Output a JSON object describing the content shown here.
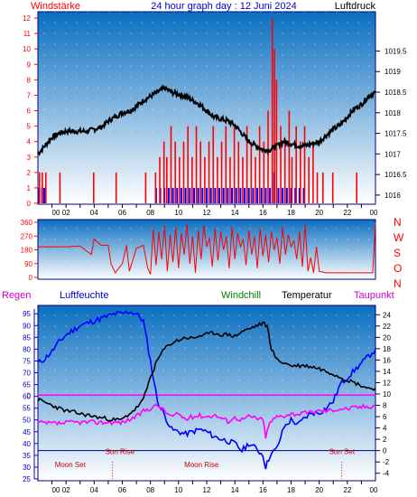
{
  "header": {
    "title": "24 hour graph day : 12 Juni 2024",
    "left_label": "Windstärke",
    "right_label": "Luftdruck"
  },
  "lower_header": {
    "regen": "Regen",
    "luftfeuchte": "Luftfeuchte",
    "windchill": "Windchill",
    "temperatur": "Temperatur",
    "taupunkt": "Taupunkt"
  },
  "colors": {
    "frame": "#000080",
    "grad_top": "#0a6fc0",
    "grad_bottom": "#ffffff",
    "pressure": "#000000",
    "gust": "#ff0000",
    "wind": "#0000ff",
    "direction": "#ff0000",
    "humidity": "#0000ff",
    "temperature": "#000000",
    "dewpoint": "#ff00ff",
    "rain": "#ff0000",
    "axis_red": "#ff0000",
    "axis_blue": "#0000cc",
    "windchill_label": "#008000",
    "regen_label": "#cc00cc"
  },
  "chart_data": [
    {
      "type": "bar",
      "name_hint": "wind-pressure",
      "x_ticks": [
        "00",
        "02",
        "04",
        "06",
        "08",
        "10",
        "12",
        "14",
        "16",
        "18",
        "20",
        "22",
        "00"
      ],
      "x_tick_hours": [
        0,
        2,
        4,
        6,
        8,
        10,
        12,
        14,
        16,
        18,
        20,
        22,
        24
      ],
      "left_axis": {
        "ticks": [
          "0",
          "1",
          "2",
          "3",
          "4",
          "5",
          "6",
          "7",
          "8",
          "9",
          "10",
          "11",
          "12"
        ],
        "range": [
          0,
          12
        ]
      },
      "right_axis": {
        "ticks": [
          "1016",
          "1016.5",
          "1017",
          "1017.5",
          "1018",
          "1018.5",
          "1019",
          "1019.5"
        ],
        "range": [
          1015.8,
          1020.3
        ]
      },
      "pressure": {
        "hours": [
          0,
          0.5,
          1,
          1.5,
          2,
          2.5,
          3,
          3.5,
          4,
          4.5,
          5,
          5.5,
          6,
          6.5,
          7,
          7.5,
          8,
          8.5,
          9,
          9.5,
          10,
          10.5,
          11,
          11.5,
          12,
          12.5,
          13,
          13.5,
          14,
          14.5,
          15,
          15.5,
          16,
          16.5,
          17,
          17.5,
          18,
          18.5,
          19,
          19.5,
          20,
          20.5,
          21,
          21.5,
          22,
          22.5,
          23,
          23.5,
          24
        ],
        "values": [
          1017.0,
          1017.2,
          1017.4,
          1017.5,
          1017.55,
          1017.55,
          1017.55,
          1017.55,
          1017.6,
          1017.65,
          1017.8,
          1017.9,
          1018.0,
          1018.05,
          1018.15,
          1018.3,
          1018.4,
          1018.5,
          1018.6,
          1018.5,
          1018.45,
          1018.4,
          1018.3,
          1018.2,
          1018.05,
          1017.9,
          1017.85,
          1017.8,
          1017.7,
          1017.5,
          1017.3,
          1017.2,
          1017.1,
          1017.1,
          1017.2,
          1017.3,
          1017.25,
          1017.2,
          1017.2,
          1017.25,
          1017.3,
          1017.45,
          1017.6,
          1017.7,
          1017.9,
          1018.1,
          1018.2,
          1018.4,
          1018.5
        ]
      },
      "gust_events": [
        {
          "h": 0.05,
          "v": 2
        },
        {
          "h": 0.25,
          "v": 2
        },
        {
          "h": 0.5,
          "v": 2
        },
        {
          "h": 1.5,
          "v": 2
        },
        {
          "h": 3.9,
          "v": 2
        },
        {
          "h": 5.5,
          "v": 2
        },
        {
          "h": 7.6,
          "v": 2
        },
        {
          "h": 8.3,
          "v": 2
        },
        {
          "h": 8.6,
          "v": 3
        },
        {
          "h": 8.9,
          "v": 4
        },
        {
          "h": 9.1,
          "v": 3
        },
        {
          "h": 9.4,
          "v": 5
        },
        {
          "h": 9.7,
          "v": 4
        },
        {
          "h": 10.0,
          "v": 3
        },
        {
          "h": 10.3,
          "v": 4
        },
        {
          "h": 10.6,
          "v": 5
        },
        {
          "h": 10.9,
          "v": 3
        },
        {
          "h": 11.2,
          "v": 5
        },
        {
          "h": 11.5,
          "v": 4
        },
        {
          "h": 11.8,
          "v": 3
        },
        {
          "h": 12.1,
          "v": 4
        },
        {
          "h": 12.4,
          "v": 5
        },
        {
          "h": 12.7,
          "v": 3
        },
        {
          "h": 13.0,
          "v": 4
        },
        {
          "h": 13.3,
          "v": 5
        },
        {
          "h": 13.6,
          "v": 3
        },
        {
          "h": 13.9,
          "v": 5
        },
        {
          "h": 14.2,
          "v": 4
        },
        {
          "h": 14.5,
          "v": 3
        },
        {
          "h": 14.8,
          "v": 5
        },
        {
          "h": 15.1,
          "v": 4
        },
        {
          "h": 15.4,
          "v": 3
        },
        {
          "h": 15.7,
          "v": 5
        },
        {
          "h": 16.0,
          "v": 4
        },
        {
          "h": 16.3,
          "v": 6
        },
        {
          "h": 16.6,
          "v": 12
        },
        {
          "h": 16.75,
          "v": 10
        },
        {
          "h": 16.9,
          "v": 8
        },
        {
          "h": 17.2,
          "v": 5
        },
        {
          "h": 17.5,
          "v": 4
        },
        {
          "h": 17.8,
          "v": 6
        },
        {
          "h": 18.0,
          "v": 3
        },
        {
          "h": 18.3,
          "v": 5
        },
        {
          "h": 18.6,
          "v": 4
        },
        {
          "h": 18.9,
          "v": 5
        },
        {
          "h": 19.2,
          "v": 3
        },
        {
          "h": 19.5,
          "v": 4
        },
        {
          "h": 19.8,
          "v": 2
        },
        {
          "h": 20.2,
          "v": 2
        },
        {
          "h": 20.9,
          "v": 2
        },
        {
          "h": 22.6,
          "v": 2
        }
      ],
      "wind_events": [
        {
          "h": 0.1,
          "v": 1
        },
        {
          "h": 0.3,
          "v": 1
        },
        {
          "h": 0.45,
          "v": 1
        },
        {
          "h": 8.4,
          "v": 1
        },
        {
          "h": 8.7,
          "v": 1
        },
        {
          "h": 9.0,
          "v": 1
        },
        {
          "h": 9.3,
          "v": 1
        },
        {
          "h": 9.6,
          "v": 1
        },
        {
          "h": 9.9,
          "v": 1
        },
        {
          "h": 10.2,
          "v": 1
        },
        {
          "h": 10.5,
          "v": 1
        },
        {
          "h": 10.8,
          "v": 1
        },
        {
          "h": 11.1,
          "v": 1
        },
        {
          "h": 11.4,
          "v": 1
        },
        {
          "h": 11.7,
          "v": 1
        },
        {
          "h": 12.0,
          "v": 1
        },
        {
          "h": 12.3,
          "v": 1
        },
        {
          "h": 12.6,
          "v": 1
        },
        {
          "h": 12.9,
          "v": 1
        },
        {
          "h": 13.2,
          "v": 1
        },
        {
          "h": 13.5,
          "v": 1
        },
        {
          "h": 13.8,
          "v": 1
        },
        {
          "h": 14.1,
          "v": 1
        },
        {
          "h": 14.4,
          "v": 1
        },
        {
          "h": 14.7,
          "v": 1
        },
        {
          "h": 15.0,
          "v": 1
        },
        {
          "h": 15.3,
          "v": 1
        },
        {
          "h": 15.6,
          "v": 1
        },
        {
          "h": 15.9,
          "v": 1
        },
        {
          "h": 16.2,
          "v": 1
        },
        {
          "h": 16.5,
          "v": 1
        },
        {
          "h": 16.8,
          "v": 2
        },
        {
          "h": 17.1,
          "v": 1
        },
        {
          "h": 17.4,
          "v": 1
        },
        {
          "h": 17.7,
          "v": 1
        },
        {
          "h": 18.0,
          "v": 1
        },
        {
          "h": 18.3,
          "v": 1
        },
        {
          "h": 18.6,
          "v": 1
        },
        {
          "h": 18.9,
          "v": 1
        }
      ]
    },
    {
      "type": "line",
      "name_hint": "wind-direction",
      "left_axis": {
        "ticks": [
          "0",
          "90",
          "180",
          "270",
          "360"
        ],
        "range": [
          0,
          360
        ]
      },
      "right_labels": [
        "N",
        "W",
        "S",
        "O",
        "N"
      ],
      "direction": {
        "hours": [
          0,
          0.5,
          1,
          2,
          3,
          3.8,
          4,
          4.5,
          5,
          5.2,
          5.5,
          6,
          6.3,
          6.5,
          7,
          7.5,
          7.8,
          8,
          8.2,
          8.4,
          8.6,
          8.8,
          9,
          9.2,
          9.4,
          9.6,
          9.8,
          10,
          10.2,
          10.4,
          10.6,
          10.8,
          11,
          11.2,
          11.4,
          11.6,
          11.8,
          12,
          12.2,
          12.4,
          12.6,
          12.8,
          13,
          13.2,
          13.4,
          13.6,
          13.8,
          14,
          14.2,
          14.4,
          14.6,
          14.8,
          15,
          15.2,
          15.4,
          15.6,
          15.8,
          16,
          16.2,
          16.4,
          16.6,
          16.8,
          17,
          17.2,
          17.4,
          17.6,
          17.8,
          18,
          18.2,
          18.4,
          18.6,
          18.8,
          19,
          19.2,
          19.4,
          19.6,
          19.8,
          20,
          20.5,
          21,
          22,
          23,
          23.8,
          24
        ],
        "values": [
          200,
          200,
          200,
          200,
          205,
          150,
          250,
          210,
          210,
          90,
          30,
          90,
          210,
          40,
          190,
          210,
          60,
          20,
          320,
          80,
          300,
          120,
          340,
          40,
          280,
          100,
          330,
          60,
          290,
          150,
          350,
          90,
          270,
          30,
          310,
          120,
          340,
          200,
          260,
          70,
          320,
          110,
          300,
          180,
          270,
          60,
          330,
          120,
          290,
          200,
          250,
          80,
          310,
          150,
          270,
          60,
          320,
          140,
          280,
          100,
          300,
          180,
          260,
          90,
          330,
          150,
          280,
          200,
          240,
          120,
          300,
          70,
          350,
          40,
          130,
          30,
          200,
          40,
          30,
          30,
          30,
          30,
          30,
          360
        ]
      }
    },
    {
      "type": "line",
      "name_hint": "temp-humidity",
      "left_axis": {
        "ticks": [
          "25",
          "30",
          "35",
          "40",
          "45",
          "50",
          "55",
          "60",
          "65",
          "70",
          "75",
          "80",
          "85",
          "90",
          "95"
        ],
        "range": [
          25,
          97
        ]
      },
      "right_axis": {
        "ticks": [
          "-4",
          "-2",
          "0",
          "2",
          "4",
          "6",
          "8",
          "10",
          "12",
          "14",
          "16",
          "18",
          "20",
          "22",
          "24"
        ],
        "range": [
          -5,
          25
        ]
      },
      "rain_zero_label": "0",
      "annotations": {
        "sun_rise": "Sun Rise",
        "sun_set": "Sun Set",
        "moon_set": "Moon Set",
        "moon_rise": "Moon Rise"
      },
      "events": {
        "sun_rise_h": 5.3,
        "sun_set_h": 21.6,
        "moon_set_h": 1.2,
        "moon_rise_h": 10.4,
        "ref_hour_1": 5.3,
        "ref_hour_2": 21.6
      },
      "sun_line_value": 0,
      "humidity": {
        "hours": [
          0,
          0.5,
          1,
          1.5,
          2,
          2.5,
          3,
          3.5,
          4,
          4.5,
          5,
          5.5,
          6,
          6.5,
          7,
          7.5,
          8,
          8.5,
          9,
          9.5,
          10,
          10.5,
          11,
          11.5,
          12,
          12.5,
          13,
          13.5,
          14,
          14.5,
          15,
          15.5,
          16,
          16.2,
          16.5,
          17,
          17.5,
          18,
          18.5,
          19,
          19.5,
          20,
          20.5,
          21,
          21.5,
          22,
          22.5,
          23,
          23.5,
          24
        ],
        "values": [
          74,
          76,
          79,
          83,
          86,
          88,
          90,
          91,
          92,
          93,
          94,
          95,
          95,
          96,
          95,
          92,
          75,
          58,
          52,
          46,
          45,
          44,
          45,
          46,
          45,
          43,
          42,
          41,
          40,
          37,
          40,
          38,
          35,
          30,
          35,
          38,
          47,
          50,
          48,
          51,
          53,
          53,
          55,
          58,
          65,
          68,
          71,
          74,
          77,
          80
        ]
      },
      "temperature": {
        "hours": [
          0,
          0.5,
          1,
          1.5,
          2,
          2.5,
          3,
          3.5,
          4,
          4.5,
          5,
          5.5,
          6,
          6.5,
          7,
          7.5,
          8,
          8.5,
          9,
          9.5,
          10,
          10.5,
          11,
          11.5,
          12,
          12.5,
          13,
          13.5,
          14,
          14.5,
          15,
          15.5,
          16,
          16.3,
          16.6,
          17,
          17.5,
          18,
          18.5,
          19,
          19.5,
          20,
          20.5,
          21,
          21.5,
          22,
          22.5,
          23,
          23.5,
          24
        ],
        "values": [
          9,
          8.5,
          8,
          7.5,
          7,
          6.8,
          6.5,
          6.3,
          6,
          5.8,
          5.6,
          5.4,
          5.5,
          6.5,
          7.5,
          9,
          13,
          16,
          18,
          19,
          19.5,
          20,
          19.8,
          20.3,
          20.5,
          20.8,
          20.5,
          20.5,
          20.2,
          21,
          21.5,
          22,
          22.5,
          22,
          18,
          16,
          15.5,
          15,
          15,
          15,
          14.8,
          14.5,
          14,
          13.6,
          13,
          12.5,
          12,
          11.5,
          11,
          11
        ]
      },
      "dewpoint": {
        "hours": [
          0,
          0.5,
          1,
          1.5,
          2,
          2.5,
          3,
          3.5,
          4,
          4.5,
          5,
          5.5,
          6,
          6.5,
          7,
          7.5,
          8,
          8.5,
          9,
          9.5,
          10,
          10.5,
          11,
          11.5,
          12,
          12.5,
          13,
          13.5,
          14,
          14.5,
          15,
          15.5,
          16,
          16.2,
          16.5,
          17,
          17.5,
          18,
          18.5,
          19,
          19.5,
          20,
          20.5,
          21,
          21.5,
          22,
          22.5,
          23,
          23.5,
          24
        ],
        "values": [
          5,
          4.8,
          4.8,
          4.8,
          4.9,
          5,
          5,
          5,
          5,
          5,
          5,
          5,
          5,
          5.5,
          6,
          7,
          7.5,
          8,
          7,
          6,
          6.5,
          5.5,
          6,
          6.2,
          6,
          6.3,
          5.8,
          5.2,
          5.8,
          5.5,
          6,
          5.8,
          5.4,
          2.5,
          5,
          6,
          6.2,
          6.5,
          6.5,
          6.6,
          6.8,
          7,
          7,
          7.2,
          7.4,
          7.4,
          7.6,
          7.7,
          7.8,
          8
        ]
      },
      "rain": {
        "hours": [
          0,
          24
        ],
        "values": [
          0,
          0
        ]
      }
    }
  ]
}
